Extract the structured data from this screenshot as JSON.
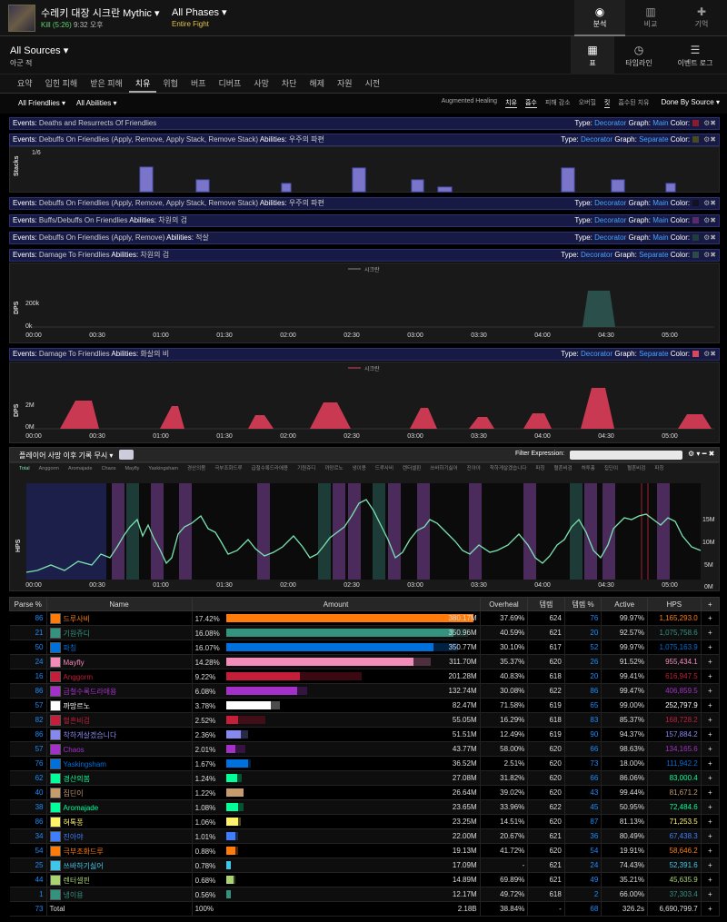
{
  "header": {
    "encounter_title": "수레키 대장 시크란 Mythic ▾",
    "kill_text": "Kill (5:26)",
    "time_text": "9:32 오후",
    "phase_label": "All Phases ▾",
    "fight_label": "Entire Fight",
    "nav": [
      {
        "label": "분석",
        "icon": "eye-icon",
        "active": true
      },
      {
        "label": "비교",
        "icon": "compare-icon",
        "active": false
      },
      {
        "label": "기억",
        "icon": "puzzle-icon",
        "active": false
      }
    ]
  },
  "source": {
    "label": "All Sources ▾",
    "sub": "아군  적"
  },
  "views": [
    {
      "label": "표",
      "icon": "grid-icon"
    },
    {
      "label": "타임라인",
      "icon": "clock-icon"
    },
    {
      "label": "이벤트 로그",
      "icon": "list-icon"
    }
  ],
  "tabs": [
    "요약",
    "입힌 피해",
    "받은 피해",
    "치유",
    "위협",
    "버프",
    "디버프",
    "사망",
    "차단",
    "해제",
    "자원",
    "시전"
  ],
  "active_tab": "치유",
  "filters": {
    "friendlies": "All Friendlies ▾",
    "abilities": "All Abilities ▾",
    "metrics": [
      "Augmented Healing",
      "치유",
      "흡수",
      "피해 감소",
      "오버힐",
      "킷",
      "흡수된 치유"
    ],
    "selected_metrics": [
      "치유",
      "흡수",
      "킷"
    ],
    "sort": "Done By Source ▾"
  },
  "event_rows": [
    {
      "label": "Events:",
      "text": "Deaths and Resurrects Of Friendlies",
      "ability_label": "",
      "ability": "",
      "type": "Decorator",
      "graph": "Main",
      "color": "#8b1a2a"
    },
    {
      "label": "Events:",
      "text": "Debuffs On Friendlies (Apply, Remove, Apply Stack, Remove Stack)",
      "ability_label": "Abilities:",
      "ability": "우주의 파편",
      "type": "Decorator",
      "graph": "Separate",
      "color": "#4a4a20"
    },
    {
      "label": "Events:",
      "text": "Debuffs On Friendlies (Apply, Remove, Apply Stack, Remove Stack)",
      "ability_label": "Abilities:",
      "ability": "우주의 파편",
      "type": "Decorator",
      "graph": "Main",
      "color": "#111122"
    },
    {
      "label": "Events:",
      "text": "Buffs/Debuffs On Friendlies",
      "ability_label": "Abilities:",
      "ability": "차원의 검",
      "type": "Decorator",
      "graph": "Main",
      "color": "#5a2a6a"
    },
    {
      "label": "Events:",
      "text": "Debuffs On Friendlies (Apply, Remove)",
      "ability_label": "Abilities:",
      "ability": "적살",
      "type": "Decorator",
      "graph": "Main",
      "color": "#1f3d3a"
    },
    {
      "label": "Events:",
      "text": "Damage To Friendlies",
      "ability_label": "Abilities:",
      "ability": "차원의 검",
      "type": "Decorator",
      "graph": "Separate",
      "color": "#2c4b48"
    },
    {
      "label": "Events:",
      "text": "Damage To Friendlies",
      "ability_label": "Abilities:",
      "ability": "화살의 비",
      "type": "Decorator",
      "graph": "Separate",
      "color": "#d9475e"
    }
  ],
  "field_labels": {
    "type": "Type:",
    "graph": "Graph:",
    "color": "Color:"
  },
  "stacks_chart": {
    "ylabel": "Stacks",
    "tick": "1/6"
  },
  "chart1": {
    "series": "시크란",
    "ylabel": "DPS",
    "ticks": [
      "200k",
      "0k"
    ]
  },
  "chart2": {
    "series": "시크란",
    "ylabel": "DPS",
    "ticks": [
      "2M",
      "0M"
    ]
  },
  "time_ticks": [
    "00:00",
    "00:30",
    "01:00",
    "01:30",
    "02:00",
    "02:30",
    "03:00",
    "03:30",
    "04:00",
    "04:30",
    "05:00"
  ],
  "hps_chart": {
    "toolbar_label": "플레이어 사망 이후 기록 무시 ▾",
    "filter_label": "Filter Expression:",
    "ylabel": "HPS",
    "yticks": [
      "15M",
      "10M",
      "5M",
      "0M"
    ],
    "legend": [
      "Total",
      "Anggorm",
      "Aromajade",
      "Chaos",
      "Mayfly",
      "Yaskingsham",
      "경산의봄",
      "극부조화드루",
      "급철수록드라애용",
      "기원쥬디",
      "까망르노",
      "냉이용",
      "드루사비",
      "렌터셀핀",
      "쓰바하기싫어",
      "진아야",
      "착하게살겠습니다",
      "파칭",
      "혈흔비검",
      "허투퐁",
      "집딘이",
      "혈흔비검",
      "파칭"
    ]
  },
  "table": {
    "headers": [
      "Parse %",
      "Name",
      "Amount",
      "Overheal",
      "템렙",
      "템렙 %",
      "Active",
      "HPS",
      "+"
    ],
    "rows": [
      {
        "parse": "86",
        "name": "드루사비",
        "color": "#ff7c0a",
        "pct": "17.42%",
        "frac": 1.0,
        "ovfrac": 0.0,
        "amount": "380.17M",
        "overheal": "37.69%",
        "il": "624",
        "ilp": "76",
        "active": "99.97%",
        "hps": "1,165,293.0"
      },
      {
        "parse": "21",
        "name": "기원쥬디",
        "color": "#33937f",
        "pct": "16.08%",
        "frac": 0.92,
        "ovfrac": 0.06,
        "amount": "350.96M",
        "overheal": "40.59%",
        "il": "621",
        "ilp": "20",
        "active": "92.57%",
        "hps": "1,075,758.6"
      },
      {
        "parse": "50",
        "name": "파칭",
        "color": "#0070dd",
        "pct": "16.07%",
        "frac": 0.84,
        "ovfrac": 0.1,
        "amount": "350.77M",
        "overheal": "30.10%",
        "il": "617",
        "ilp": "52",
        "active": "99.97%",
        "hps": "1,075,163.9"
      },
      {
        "parse": "24",
        "name": "Mayfly",
        "color": "#f48cba",
        "pct": "14.28%",
        "frac": 0.76,
        "ovfrac": 0.07,
        "amount": "311.70M",
        "overheal": "35.37%",
        "il": "620",
        "ilp": "26",
        "active": "91.52%",
        "hps": "955,434.1"
      },
      {
        "parse": "16",
        "name": "Anggorm",
        "color": "#c41e3a",
        "pct": "9.22%",
        "frac": 0.3,
        "ovfrac": 0.25,
        "amount": "201.28M",
        "overheal": "40.83%",
        "il": "618",
        "ilp": "20",
        "active": "99.41%",
        "hps": "616,947.5"
      },
      {
        "parse": "86",
        "name": "급철수록드라애용",
        "color": "#a330c9",
        "pct": "6.08%",
        "frac": 0.29,
        "ovfrac": 0.04,
        "amount": "132.74M",
        "overheal": "30.08%",
        "il": "622",
        "ilp": "86",
        "active": "99.47%",
        "hps": "406,859.5"
      },
      {
        "parse": "57",
        "name": "까망르노",
        "color": "#ffffff",
        "pct": "3.78%",
        "frac": 0.18,
        "ovfrac": 0.04,
        "amount": "82.47M",
        "overheal": "71.58%",
        "il": "619",
        "ilp": "65",
        "active": "99.00%",
        "hps": "252,797.9"
      },
      {
        "parse": "82",
        "name": "혈흔비검",
        "color": "#c41e3a",
        "pct": "2.52%",
        "frac": 0.05,
        "ovfrac": 0.11,
        "amount": "55.05M",
        "overheal": "16.29%",
        "il": "618",
        "ilp": "83",
        "active": "85.37%",
        "hps": "168,728.2"
      },
      {
        "parse": "86",
        "name": "착하게살겠습니다",
        "color": "#8788ee",
        "pct": "2.36%",
        "frac": 0.06,
        "ovfrac": 0.03,
        "amount": "51.51M",
        "overheal": "12.49%",
        "il": "619",
        "ilp": "90",
        "active": "94.37%",
        "hps": "157,884.2"
      },
      {
        "parse": "57",
        "name": "Chaos",
        "color": "#a330c9",
        "pct": "2.01%",
        "frac": 0.04,
        "ovfrac": 0.04,
        "amount": "43.77M",
        "overheal": "58.00%",
        "il": "620",
        "ilp": "66",
        "active": "98.63%",
        "hps": "134,165.6"
      },
      {
        "parse": "76",
        "name": "Yaskingsham",
        "color": "#0070dd",
        "pct": "1.67%",
        "frac": 0.09,
        "ovfrac": 0.01,
        "amount": "36.52M",
        "overheal": "2.51%",
        "il": "620",
        "ilp": "73",
        "active": "18.00%",
        "hps": "111,942.2"
      },
      {
        "parse": "62",
        "name": "경산의봄",
        "color": "#00ff98",
        "pct": "1.24%",
        "frac": 0.045,
        "ovfrac": 0.02,
        "amount": "27.08M",
        "overheal": "31.82%",
        "il": "620",
        "ilp": "66",
        "active": "86.06%",
        "hps": "83,000.4"
      },
      {
        "parse": "40",
        "name": "집딘이",
        "color": "#c69b6d",
        "pct": "1.22%",
        "frac": 0.07,
        "ovfrac": 0.0,
        "amount": "26.64M",
        "overheal": "39.02%",
        "il": "620",
        "ilp": "43",
        "active": "99.44%",
        "hps": "81,671.2"
      },
      {
        "parse": "38",
        "name": "Aromajade",
        "color": "#00ff98",
        "pct": "1.08%",
        "frac": 0.05,
        "ovfrac": 0.02,
        "amount": "23.65M",
        "overheal": "33.96%",
        "il": "622",
        "ilp": "45",
        "active": "50.95%",
        "hps": "72,484.6"
      },
      {
        "parse": "86",
        "name": "혀톡퐁",
        "color": "#fff468",
        "pct": "1.06%",
        "frac": 0.05,
        "ovfrac": 0.01,
        "amount": "23.25M",
        "overheal": "14.51%",
        "il": "620",
        "ilp": "87",
        "active": "81.13%",
        "hps": "71,253.5"
      },
      {
        "parse": "34",
        "name": "진아야",
        "color": "#3f7fff",
        "pct": "1.01%",
        "frac": 0.04,
        "ovfrac": 0.01,
        "amount": "22.00M",
        "overheal": "20.67%",
        "il": "621",
        "ilp": "36",
        "active": "80.49%",
        "hps": "67,438.3"
      },
      {
        "parse": "54",
        "name": "극부조화드루",
        "color": "#ff7c0a",
        "pct": "0.88%",
        "frac": 0.04,
        "ovfrac": 0.01,
        "amount": "19.13M",
        "overheal": "41.72%",
        "il": "620",
        "ilp": "54",
        "active": "19.91%",
        "hps": "58,646.2"
      },
      {
        "parse": "25",
        "name": "쓰바하기싫어",
        "color": "#3fc7eb",
        "pct": "0.78%",
        "frac": 0.02,
        "ovfrac": 0.0,
        "amount": "17.09M",
        "overheal": "-",
        "il": "621",
        "ilp": "24",
        "active": "74.43%",
        "hps": "52,391.6"
      },
      {
        "parse": "44",
        "name": "렌터셀핀",
        "color": "#aad372",
        "pct": "0.68%",
        "frac": 0.03,
        "ovfrac": 0.01,
        "amount": "14.89M",
        "overheal": "69.89%",
        "il": "621",
        "ilp": "49",
        "active": "35.21%",
        "hps": "45,635.9"
      },
      {
        "parse": "1",
        "name": "냉이용",
        "color": "#33937f",
        "pct": "0.56%",
        "frac": 0.02,
        "ovfrac": 0.0,
        "amount": "12.17M",
        "overheal": "49.72%",
        "il": "618",
        "ilp": "2",
        "active": "66.00%",
        "hps": "37,303.4"
      }
    ],
    "total": {
      "parse": "73",
      "name": "Total",
      "pct": "100%",
      "amount": "2.18B",
      "overheal": "38.84%",
      "il": "-",
      "ilp": "68",
      "active": "326.2s",
      "hps": "6,690,799.7"
    }
  },
  "parse_color": "#1a8cff"
}
